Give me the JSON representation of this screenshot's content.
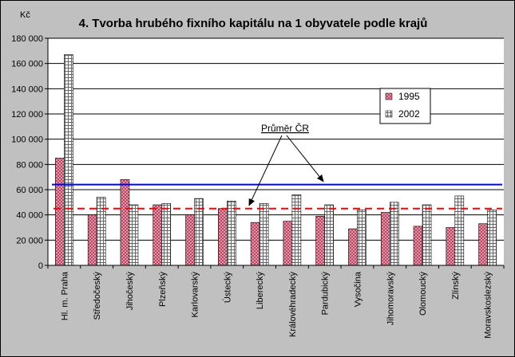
{
  "chart_data": {
    "type": "bar",
    "title": "4. Tvorba hrubého fixního kapitálu na 1 obyvatele podle krajů",
    "ylabel": "Kč",
    "ylim": [
      0,
      180000
    ],
    "yticks": [
      0,
      20000,
      40000,
      60000,
      80000,
      100000,
      120000,
      140000,
      160000,
      180000
    ],
    "ytick_labels": [
      "0",
      "20 000",
      "40 000",
      "60 000",
      "80 000",
      "100 000",
      "120 000",
      "140 000",
      "160 000",
      "180 000"
    ],
    "grid": true,
    "legend_position": "right",
    "categories": [
      "Hl. m. Praha",
      "Středočeský",
      "Jihočeský",
      "Plzeňský",
      "Karlovarský",
      "Ústecký",
      "Liberecký",
      "Královéhradecký",
      "Pardubický",
      "Vysočina",
      "Jihomoravský",
      "Olomoucký",
      "Zlínský",
      "Moravskoslezský"
    ],
    "series": [
      {
        "name": "1995",
        "color": "#e0a0b0",
        "values": [
          85000,
          40000,
          68000,
          48000,
          40000,
          45000,
          34000,
          35000,
          39000,
          29000,
          42000,
          31000,
          30000,
          33000
        ]
      },
      {
        "name": "2002",
        "color": "#a8d4f0",
        "values": [
          167000,
          54000,
          48000,
          49000,
          53000,
          51000,
          49000,
          56000,
          48000,
          44000,
          50000,
          48000,
          55000,
          44000
        ]
      }
    ],
    "reference_lines": [
      {
        "series": "1995",
        "value": 45000,
        "color": "#ff0000",
        "style": "dashed"
      },
      {
        "series": "2002",
        "value": 64000,
        "color": "#0000ff",
        "style": "solid"
      }
    ],
    "annotation": "Průměr ČR"
  }
}
